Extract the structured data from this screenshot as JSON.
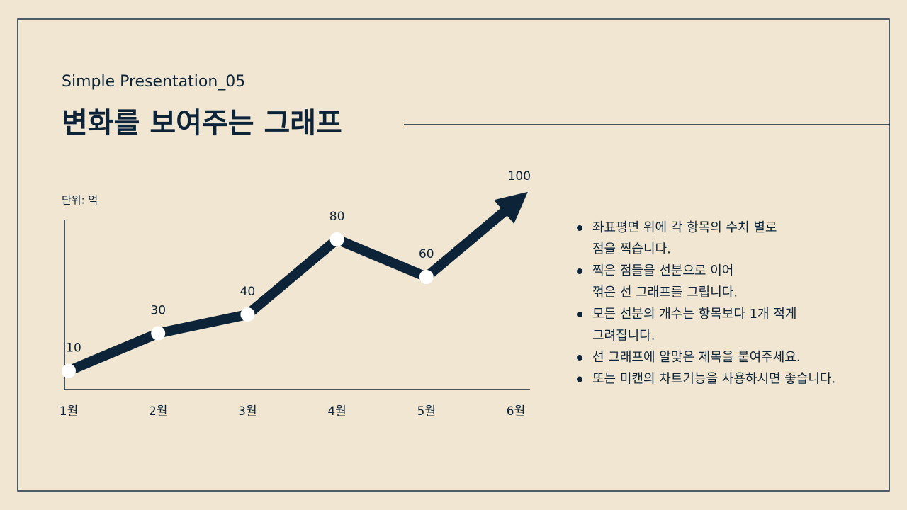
{
  "header": {
    "subtitle": "Simple Presentation_05",
    "title": "변화를 보여주는 그래프"
  },
  "chart_data": {
    "type": "line",
    "unit_label": "단위: 억",
    "categories": [
      "1월",
      "2월",
      "3월",
      "4월",
      "5월",
      "6월"
    ],
    "values": [
      10,
      30,
      40,
      80,
      60,
      100
    ],
    "color": "#0d2438",
    "ylim": [
      0,
      100
    ]
  },
  "bullets": [
    [
      "좌표평면 위에 각 항목의 수치 별로",
      "점을 찍습니다."
    ],
    [
      "찍은 점들을 선분으로 이어",
      "꺾은 선 그래프를 그립니다."
    ],
    [
      "모든 선분의 개수는 항목보다 1개 적게",
      "그려집니다."
    ],
    [
      "선 그래프에 알맞은 제목을 붙여주세요."
    ],
    [
      "또는 미캔의 차트기능을 사용하시면 좋습니다."
    ]
  ]
}
